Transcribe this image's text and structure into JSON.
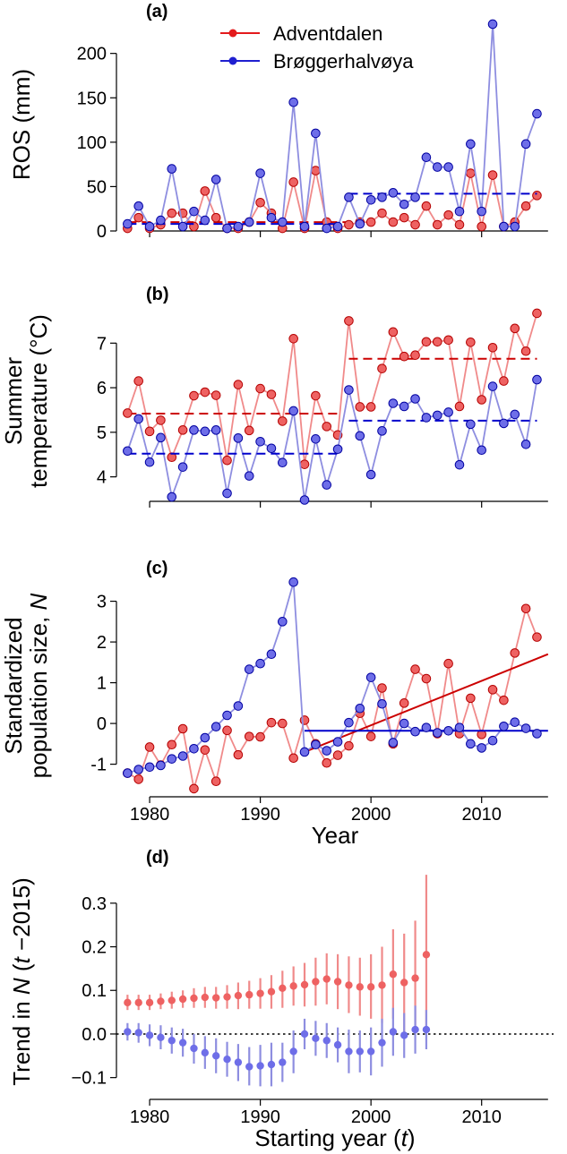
{
  "legend": {
    "items": [
      {
        "label": "Adventdalen",
        "color": "#e31a1c"
      },
      {
        "label": "Brøggerhalvøya",
        "color": "#1f1fd0"
      }
    ]
  },
  "colors": {
    "red_line": "#f08a8a",
    "red_point": "#ee6262",
    "red_edge": "#b40000",
    "red_trend": "#cc0000",
    "blue_line": "#8e8ee0",
    "blue_point": "#6e6ee8",
    "blue_edge": "#0000a0",
    "blue_trend": "#0000cc"
  },
  "chart_data": [
    {
      "panel": "(a)",
      "type": "line",
      "ylabel": [
        "ROS (mm)"
      ],
      "xlabel": "",
      "ylim": [
        0,
        240
      ],
      "xlim": [
        1977,
        2016.5
      ],
      "yticks": [
        0,
        50,
        100,
        150,
        200
      ],
      "xticks": [
        1980,
        1990,
        2000,
        2010
      ],
      "show_xtick_labels": false,
      "x": [
        1978,
        1979,
        1980,
        1981,
        1982,
        1983,
        1984,
        1985,
        1986,
        1987,
        1988,
        1989,
        1990,
        1991,
        1992,
        1993,
        1994,
        1995,
        1996,
        1997,
        1998,
        1999,
        2000,
        2001,
        2002,
        2003,
        2004,
        2005,
        2006,
        2007,
        2008,
        2009,
        2010,
        2011,
        2012,
        2013,
        2014,
        2015
      ],
      "series": [
        {
          "name": "Adventdalen",
          "color": "red",
          "values": [
            3,
            15,
            3,
            7,
            20,
            20,
            5,
            45,
            15,
            3,
            3,
            10,
            32,
            20,
            3,
            55,
            3,
            68,
            10,
            3,
            7,
            10,
            10,
            20,
            10,
            15,
            7,
            28,
            7,
            18,
            7,
            65,
            5,
            63,
            5,
            10,
            28,
            40
          ],
          "means": [
            {
              "from": 1978,
              "to": 1998,
              "value": 10
            }
          ]
        },
        {
          "name": "Brøggerhalvøya",
          "color": "blue",
          "values": [
            8,
            28,
            5,
            12,
            70,
            5,
            22,
            12,
            58,
            3,
            5,
            10,
            65,
            15,
            10,
            145,
            5,
            110,
            3,
            5,
            38,
            8,
            35,
            38,
            43,
            30,
            38,
            83,
            72,
            72,
            22,
            98,
            22,
            233,
            5,
            5,
            98,
            132
          ],
          "means": [
            {
              "from": 1978,
              "to": 1997,
              "value": 8
            },
            {
              "from": 1998,
              "to": 2015,
              "value": 42
            }
          ]
        }
      ]
    },
    {
      "panel": "(b)",
      "type": "line",
      "ylabel": [
        "Summer",
        "temperature (°C)"
      ],
      "xlabel": "",
      "ylim": [
        3.45,
        7.95
      ],
      "xlim": [
        1977,
        2016.5
      ],
      "yticks": [
        4,
        5,
        6,
        7
      ],
      "xticks": [
        1980,
        1990,
        2000,
        2010
      ],
      "show_xtick_labels": false,
      "x": [
        1978,
        1979,
        1980,
        1981,
        1982,
        1983,
        1984,
        1985,
        1986,
        1987,
        1988,
        1989,
        1990,
        1991,
        1992,
        1993,
        1994,
        1995,
        1996,
        1997,
        1998,
        1999,
        2000,
        2001,
        2002,
        2003,
        2004,
        2005,
        2006,
        2007,
        2008,
        2009,
        2010,
        2011,
        2012,
        2013,
        2014,
        2015
      ],
      "series": [
        {
          "name": "Adventdalen",
          "color": "red",
          "values": [
            5.43,
            6.15,
            5.02,
            5.27,
            4.44,
            5.05,
            5.82,
            5.9,
            5.83,
            4.37,
            6.07,
            5.04,
            5.98,
            5.85,
            5.25,
            7.1,
            4.28,
            5.82,
            5.13,
            4.94,
            7.5,
            5.57,
            5.57,
            6.43,
            7.25,
            6.7,
            6.73,
            7.03,
            7.03,
            7.07,
            5.58,
            7.02,
            5.73,
            6.9,
            6.15,
            7.33,
            6.82,
            7.67
          ],
          "means": [
            {
              "from": 1978,
              "to": 1997,
              "value": 5.42
            },
            {
              "from": 1998,
              "to": 2015,
              "value": 6.65
            }
          ]
        },
        {
          "name": "Brøggerhalvøya",
          "color": "blue",
          "values": [
            4.58,
            5.3,
            4.33,
            4.88,
            3.55,
            4.22,
            5.05,
            5.02,
            5.05,
            3.63,
            4.87,
            4.02,
            4.79,
            4.64,
            4.32,
            5.48,
            3.48,
            4.85,
            3.82,
            4.62,
            5.95,
            4.92,
            4.05,
            5.03,
            5.65,
            5.58,
            5.75,
            5.33,
            5.38,
            5.45,
            4.27,
            5.18,
            4.6,
            6.03,
            5.2,
            5.4,
            4.73,
            6.18
          ],
          "means": [
            {
              "from": 1978,
              "to": 1997,
              "value": 4.52
            },
            {
              "from": 1998,
              "to": 2015,
              "value": 5.26
            }
          ]
        }
      ]
    },
    {
      "panel": "(c)",
      "type": "line",
      "ylabel": [
        "Standardized",
        "population size,"
      ],
      "ylabel_italic": "N",
      "xlabel": "Year",
      "ylim": [
        -1.8,
        3.65
      ],
      "xlim": [
        1977,
        2016.5
      ],
      "yticks": [
        -1,
        0,
        1,
        2,
        3
      ],
      "xticks": [
        1980,
        1990,
        2000,
        2010
      ],
      "show_xtick_labels": true,
      "x": [
        1978,
        1979,
        1980,
        1981,
        1982,
        1983,
        1984,
        1985,
        1986,
        1987,
        1988,
        1989,
        1990,
        1991,
        1992,
        1993,
        1994,
        1995,
        1996,
        1997,
        1998,
        1999,
        2000,
        2001,
        2002,
        2003,
        2004,
        2005,
        2006,
        2007,
        2008,
        2009,
        2010,
        2011,
        2012,
        2013,
        2014,
        2015
      ],
      "series": [
        {
          "name": "Adventdalen",
          "color": "red",
          "values": [
            -1.22,
            -1.37,
            -0.58,
            -1.02,
            -0.52,
            -0.13,
            -1.6,
            -0.65,
            -1.42,
            -0.17,
            -0.77,
            -0.32,
            -0.33,
            0.02,
            0.0,
            -0.85,
            0.08,
            -0.5,
            -0.97,
            -0.78,
            -0.55,
            0.25,
            -0.32,
            0.87,
            -0.5,
            0.5,
            1.33,
            1.1,
            -0.25,
            1.47,
            -0.25,
            0.62,
            -0.27,
            0.83,
            0.57,
            1.73,
            2.82,
            2.12
          ],
          "trend": {
            "x0": 1994,
            "y0": -0.7,
            "x1": 2016,
            "y1": 1.7
          }
        },
        {
          "name": "Brøggerhalvøya",
          "color": "blue",
          "values": [
            -1.22,
            -1.13,
            -1.07,
            -1.03,
            -0.87,
            -0.8,
            -0.62,
            -0.35,
            -0.08,
            0.2,
            0.43,
            1.33,
            1.47,
            1.7,
            2.5,
            3.47,
            -0.7,
            -0.52,
            -0.67,
            -0.45,
            0.02,
            0.37,
            1.13,
            0.48,
            -0.47,
            0.0,
            -0.2,
            -0.1,
            -0.23,
            -0.18,
            -0.1,
            -0.5,
            -0.6,
            -0.42,
            -0.07,
            0.03,
            -0.12,
            -0.25
          ],
          "trend": {
            "x0": 1994,
            "y0": -0.18,
            "x1": 2016,
            "y1": -0.18
          }
        }
      ]
    },
    {
      "panel": "(d)",
      "type": "scatter",
      "ylabel": [
        "Trend in"
      ],
      "ylabel_italic": "N",
      "ylabel_tail_italic": "t",
      "ylabel_tail": "−2015)",
      "ylabel_open": "(",
      "xlabel": "Starting year (",
      "xlabel_italic": "t",
      "xlabel_tail": ")",
      "ylim": [
        -0.15,
        0.39
      ],
      "xlim": [
        1977,
        2016.5
      ],
      "yticks": [
        -0.1,
        0.0,
        0.1,
        0.2,
        0.3
      ],
      "ytick_labels": [
        "−0.1",
        "0.0",
        "0.1",
        "0.2",
        "0.3"
      ],
      "xticks": [
        1980,
        1990,
        2000,
        2010
      ],
      "show_xtick_labels": true,
      "zero_line": true,
      "x": [
        1978,
        1979,
        1980,
        1981,
        1982,
        1983,
        1984,
        1985,
        1986,
        1987,
        1988,
        1989,
        1990,
        1991,
        1992,
        1993,
        1994,
        1995,
        1996,
        1997,
        1998,
        1999,
        2000,
        2001,
        2002,
        2003,
        2004,
        2005
      ],
      "series": [
        {
          "name": "Adventdalen",
          "color": "red",
          "values": [
            0.072,
            0.072,
            0.072,
            0.075,
            0.077,
            0.08,
            0.082,
            0.084,
            0.083,
            0.085,
            0.088,
            0.09,
            0.093,
            0.097,
            0.105,
            0.11,
            0.113,
            0.12,
            0.126,
            0.12,
            0.112,
            0.108,
            0.108,
            0.112,
            0.137,
            0.118,
            0.128,
            0.182
          ],
          "lower": [
            0.055,
            0.055,
            0.055,
            0.057,
            0.058,
            0.06,
            0.06,
            0.06,
            0.058,
            0.058,
            0.057,
            0.058,
            0.058,
            0.058,
            0.06,
            0.065,
            0.063,
            0.065,
            0.068,
            0.057,
            0.048,
            0.042,
            0.035,
            0.025,
            0.035,
            0.005,
            0.0,
            0.005
          ],
          "upper": [
            0.09,
            0.09,
            0.09,
            0.093,
            0.097,
            0.1,
            0.105,
            0.108,
            0.108,
            0.112,
            0.118,
            0.122,
            0.128,
            0.135,
            0.145,
            0.155,
            0.163,
            0.175,
            0.185,
            0.183,
            0.178,
            0.175,
            0.183,
            0.2,
            0.24,
            0.23,
            0.26,
            0.365
          ]
        },
        {
          "name": "Brøggerhalvøya",
          "color": "blue",
          "values": [
            0.005,
            0.003,
            -0.003,
            -0.008,
            -0.015,
            -0.02,
            -0.033,
            -0.043,
            -0.05,
            -0.058,
            -0.065,
            -0.075,
            -0.073,
            -0.07,
            -0.065,
            -0.04,
            0.0,
            -0.01,
            -0.015,
            -0.025,
            -0.04,
            -0.04,
            -0.04,
            -0.02,
            0.005,
            -0.003,
            0.01,
            0.01
          ],
          "lower": [
            -0.015,
            -0.02,
            -0.028,
            -0.035,
            -0.045,
            -0.052,
            -0.068,
            -0.08,
            -0.09,
            -0.098,
            -0.108,
            -0.118,
            -0.12,
            -0.12,
            -0.11,
            -0.09,
            -0.035,
            -0.05,
            -0.055,
            -0.065,
            -0.09,
            -0.088,
            -0.095,
            -0.075,
            -0.05,
            -0.055,
            -0.045,
            -0.035
          ],
          "upper": [
            0.025,
            0.025,
            0.022,
            0.02,
            0.015,
            0.012,
            0.0,
            -0.005,
            -0.01,
            -0.018,
            -0.023,
            -0.03,
            -0.025,
            -0.02,
            -0.02,
            0.008,
            0.035,
            0.03,
            0.025,
            0.015,
            0.01,
            0.008,
            0.015,
            0.035,
            0.06,
            0.048,
            0.065,
            0.055
          ]
        }
      ]
    }
  ]
}
